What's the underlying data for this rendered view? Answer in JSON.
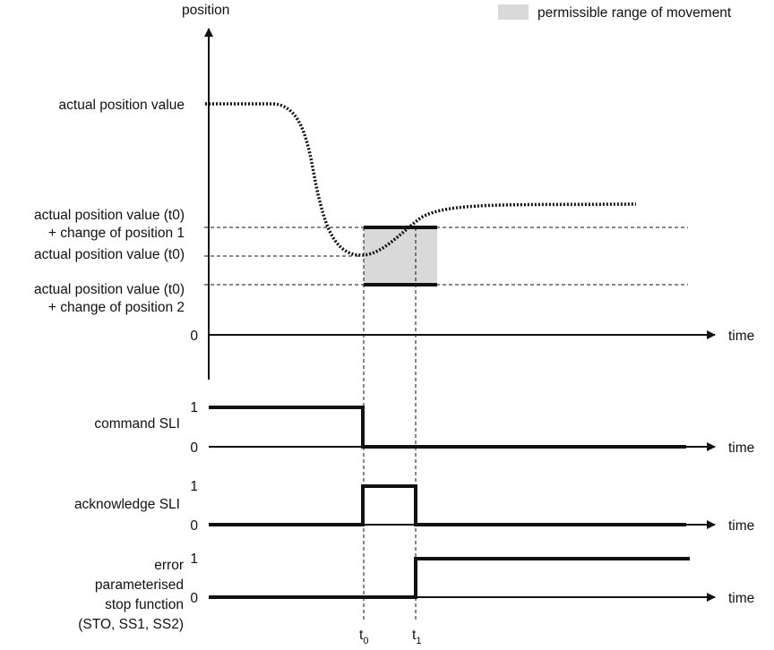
{
  "legend": {
    "label": "permissible range of movement",
    "swatch_color": "#d9d9d9"
  },
  "position_chart": {
    "y_axis_label": "position",
    "x_axis_label": "time",
    "origin_label": "0",
    "level_labels": {
      "actual_position": "actual position value",
      "limit1_line1": "actual position value (t0)",
      "limit1_line2": "+ change of position 1",
      "at_t0": "actual position value (t0)",
      "limit2_line1": "actual position value (t0)",
      "limit2_line2": "+ change of position 2"
    }
  },
  "signals": [
    {
      "label_lines": [
        "command SLI"
      ],
      "high_label": "1",
      "low_label": "0",
      "x_axis_label": "time"
    },
    {
      "label_lines": [
        "acknowledge SLI"
      ],
      "high_label": "1",
      "low_label": "0",
      "x_axis_label": "time"
    },
    {
      "label_lines": [
        "error",
        "parameterised",
        "stop function",
        "(STO, SS1, SS2)"
      ],
      "high_label": "1",
      "low_label": "0",
      "x_axis_label": "time"
    }
  ],
  "time_markers": {
    "t0": {
      "base": "t",
      "sub": "0"
    },
    "t1": {
      "base": "t",
      "sub": "1"
    }
  },
  "colors": {
    "line": "#111111",
    "range_fill": "#d9d9d9"
  }
}
